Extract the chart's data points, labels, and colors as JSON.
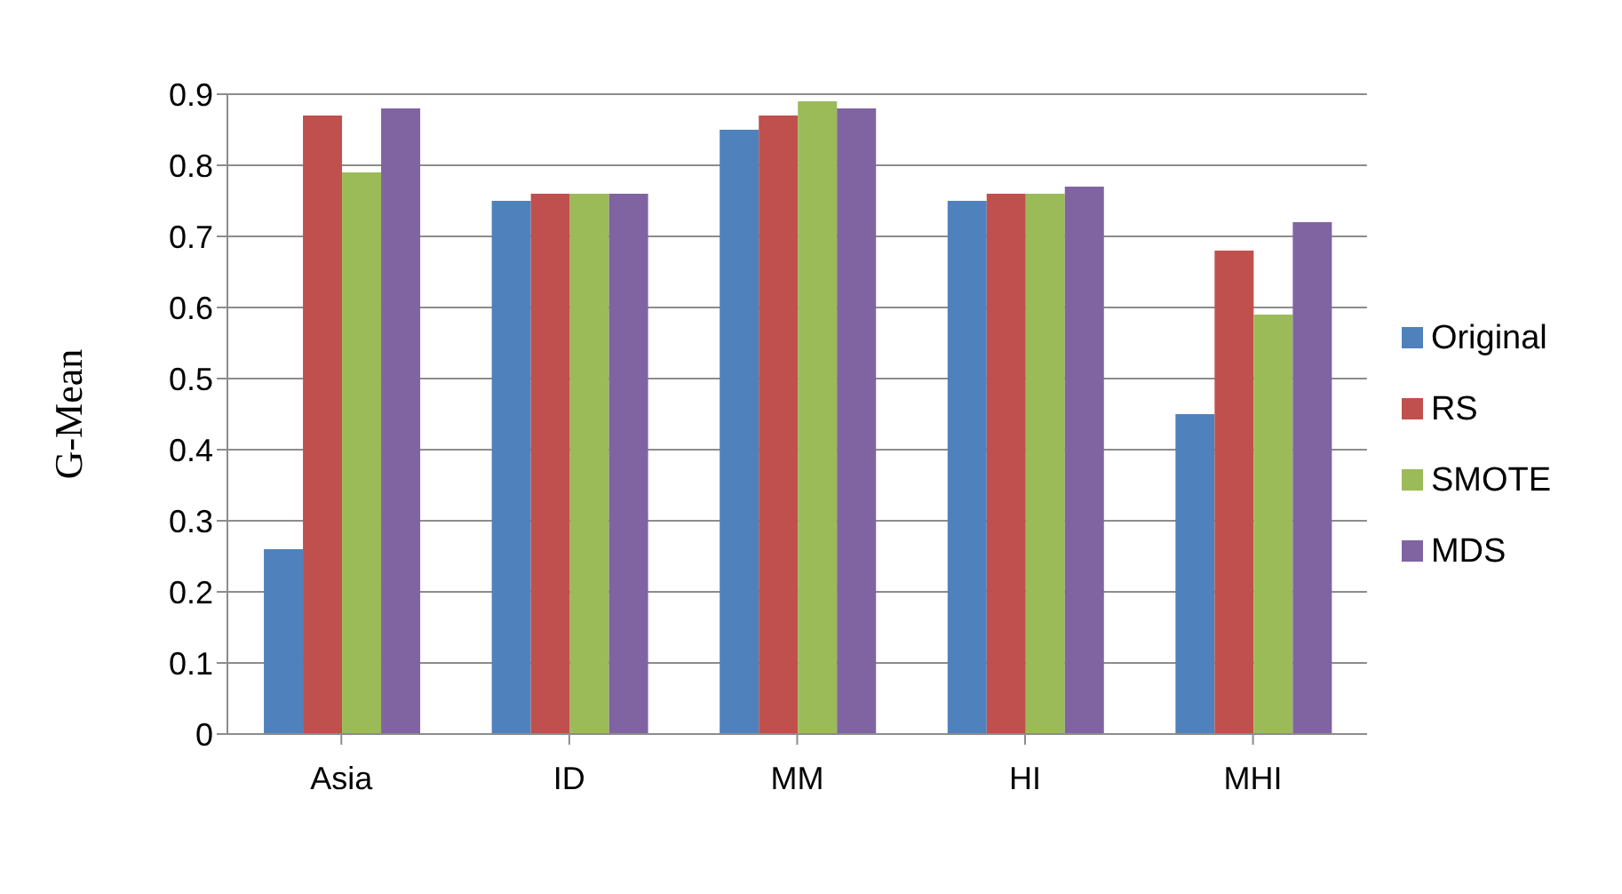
{
  "chart_data": {
    "type": "bar",
    "ylabel": "G-Mean",
    "categories": [
      "Asia",
      "ID",
      "MM",
      "HI",
      "MHI"
    ],
    "series": [
      {
        "name": "Original",
        "color": "#4f81bd",
        "values": [
          0.26,
          0.75,
          0.85,
          0.75,
          0.45
        ]
      },
      {
        "name": "RS",
        "color": "#c0504d",
        "values": [
          0.87,
          0.76,
          0.87,
          0.76,
          0.68
        ]
      },
      {
        "name": "SMOTE",
        "color": "#9bbb59",
        "values": [
          0.79,
          0.76,
          0.89,
          0.76,
          0.59
        ]
      },
      {
        "name": "MDS",
        "color": "#8064a2",
        "values": [
          0.88,
          0.76,
          0.88,
          0.77,
          0.72
        ]
      }
    ],
    "ylim": [
      0,
      0.9
    ],
    "yticks": [
      0,
      0.1,
      0.2,
      0.3,
      0.4,
      0.5,
      0.6,
      0.7,
      0.8,
      0.9
    ],
    "grid": "y",
    "legend": "right"
  }
}
